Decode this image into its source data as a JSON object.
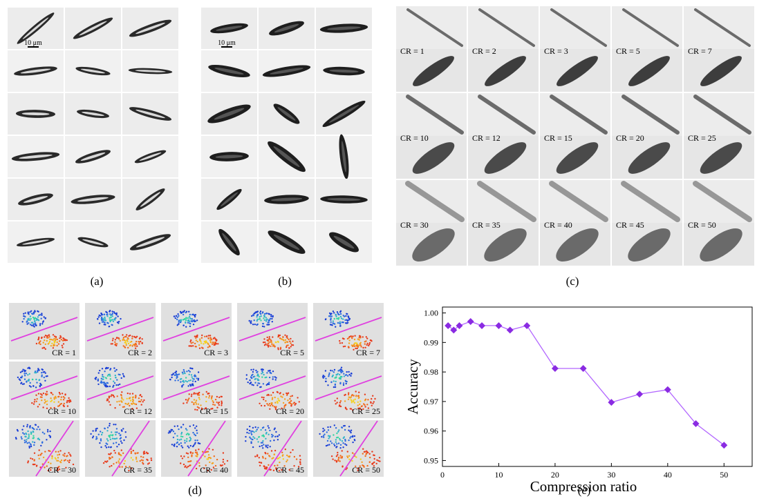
{
  "panels": {
    "a": {
      "caption": "(a)",
      "scale_bar": "10 μm"
    },
    "b": {
      "caption": "(b)",
      "scale_bar": "10 μm"
    },
    "c": {
      "caption": "(c)",
      "labels": [
        "CR = 1",
        "CR = 2",
        "CR = 3",
        "CR = 5",
        "CR = 7",
        "CR = 10",
        "CR = 12",
        "CR = 15",
        "CR = 20",
        "CR = 25",
        "CR = 30",
        "CR = 35",
        "CR = 40",
        "CR = 45",
        "CR = 50"
      ]
    },
    "d": {
      "caption": "(d)",
      "labels": [
        "CR = 1",
        "CR = 2",
        "CR = 3",
        "CR = 5",
        "CR = 7",
        "CR = 10",
        "CR = 12",
        "CR = 15",
        "CR = 20",
        "CR = 25",
        "CR = 30",
        "CR = 35",
        "CR = 40",
        "CR = 45",
        "CR = 50"
      ]
    },
    "e": {
      "caption": "(e)"
    }
  },
  "chart_data": {
    "type": "line",
    "x_label": "Compression ratio",
    "y_label": "Accuracy",
    "x": [
      1,
      2,
      3,
      5,
      7,
      10,
      12,
      15,
      20,
      25,
      30,
      35,
      40,
      45,
      50
    ],
    "values": [
      0.9957,
      0.9942,
      0.9957,
      0.9971,
      0.9957,
      0.9957,
      0.9942,
      0.9957,
      0.9812,
      0.9812,
      0.9697,
      0.9725,
      0.974,
      0.9625,
      0.9552
    ],
    "color": "#b266ff",
    "marker_color": "#8a2be2",
    "xlim": [
      0,
      55
    ],
    "xticks": [
      0,
      10,
      20,
      30,
      40,
      50
    ],
    "ylim": [
      0.948,
      1.002
    ],
    "yticks": [
      0.95,
      0.96,
      0.97,
      0.98,
      0.99,
      {
        "value": 1,
        "label": "1.00"
      }
    ]
  }
}
